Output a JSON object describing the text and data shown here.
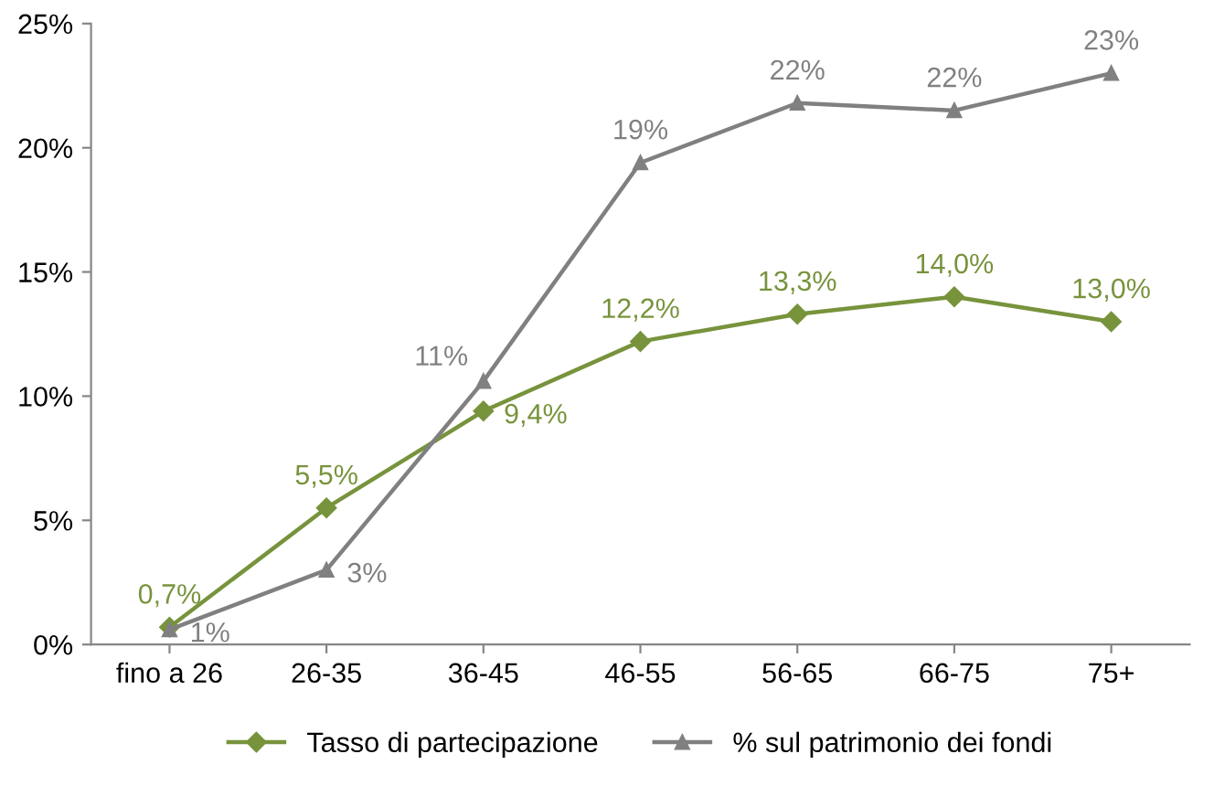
{
  "chart_data": {
    "type": "line",
    "categories": [
      "fino a 26",
      "26-35",
      "36-45",
      "46-55",
      "56-65",
      "66-75",
      "75+"
    ],
    "series": [
      {
        "name": "Tasso di partecipazione",
        "color": "#77933c",
        "marker": "diamond",
        "values": [
          0.7,
          5.5,
          9.4,
          12.2,
          13.3,
          14.0,
          13.0
        ],
        "value_labels": [
          "0,7%",
          "5,5%",
          "9,4%",
          "12,2%",
          "13,3%",
          "14,0%",
          "13,0%"
        ]
      },
      {
        "name": "% sul patrimonio dei fondi",
        "color": "#808080",
        "marker": "triangle",
        "values": [
          0.6,
          3.0,
          10.6,
          19.4,
          21.8,
          21.5,
          23.0
        ],
        "value_labels": [
          "1%",
          "3%",
          "11%",
          "19%",
          "22%",
          "22%",
          "23%"
        ]
      }
    ],
    "ylim": [
      0,
      25
    ],
    "yticks": [
      {
        "value": 0,
        "label": "0%"
      },
      {
        "value": 5,
        "label": "5%"
      },
      {
        "value": 10,
        "label": "10%"
      },
      {
        "value": 15,
        "label": "15%"
      },
      {
        "value": 20,
        "label": "20%"
      },
      {
        "value": 25,
        "label": "25%"
      }
    ],
    "grid": false,
    "legend": "bottom",
    "line_style": "solid"
  }
}
